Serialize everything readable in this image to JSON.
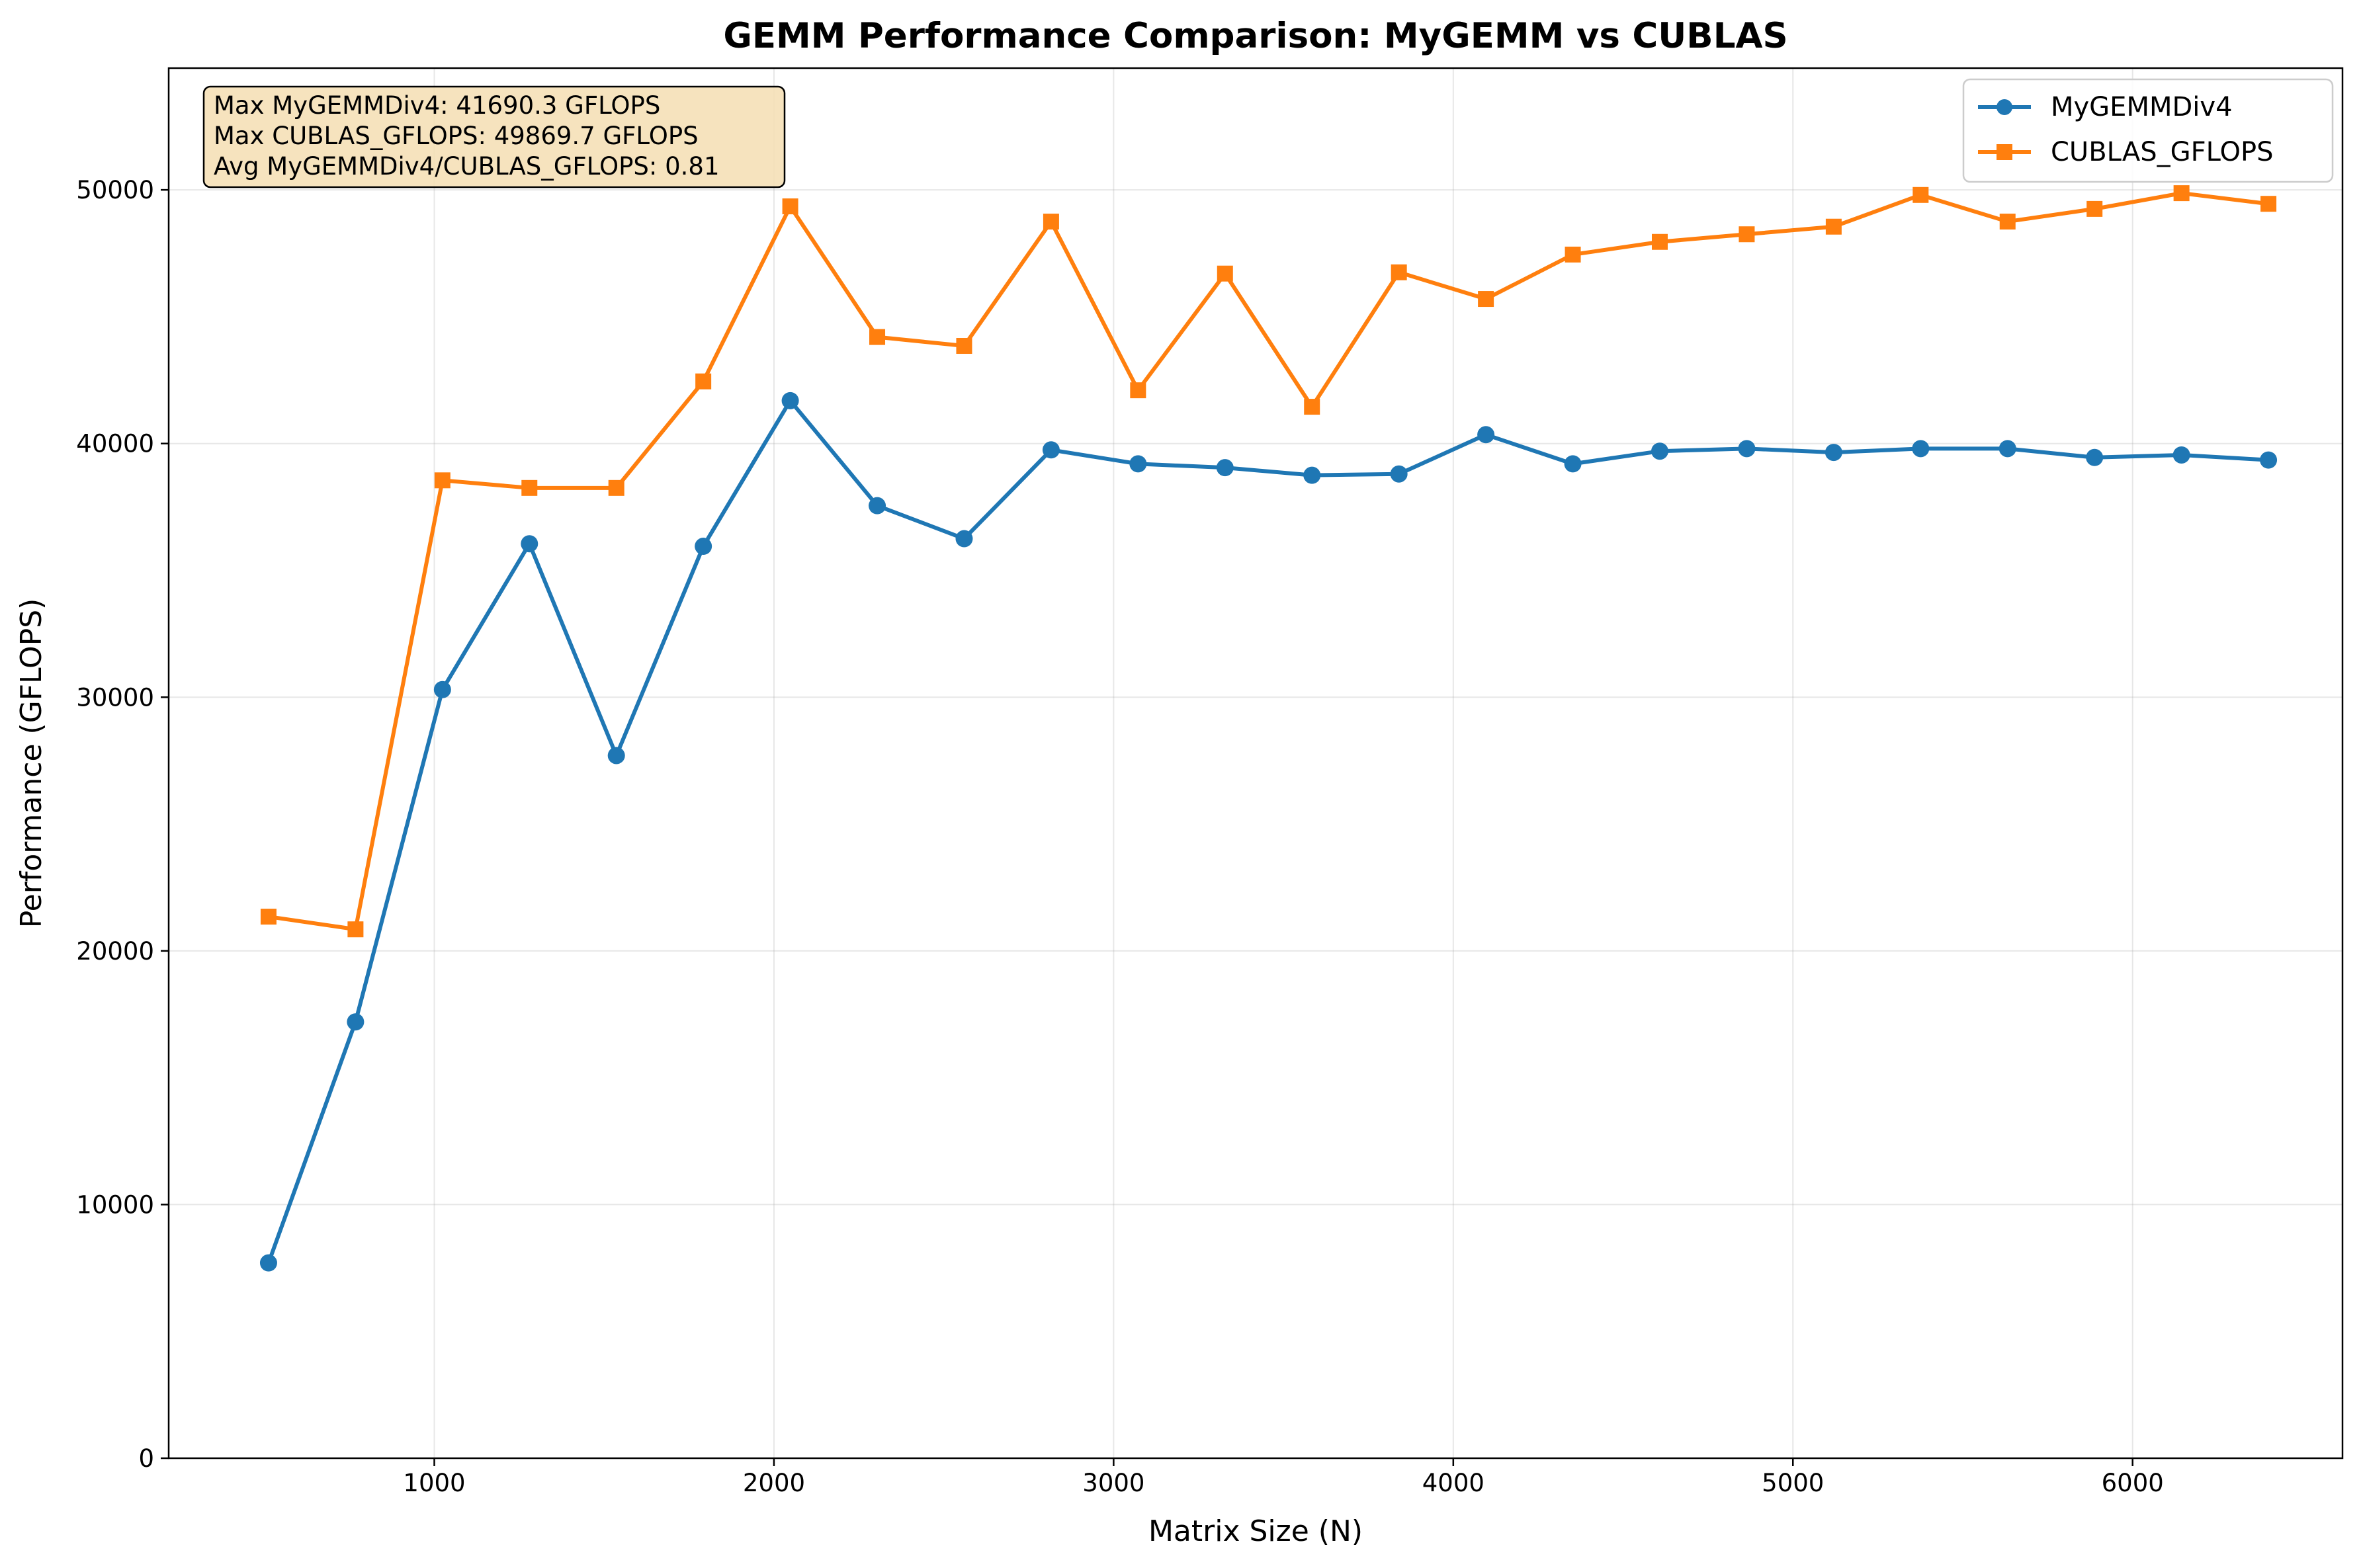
{
  "chart_data": {
    "type": "line",
    "title": "GEMM Performance Comparison: MyGEMM vs CUBLAS",
    "xlabel": "Matrix Size (N)",
    "ylabel": "Performance (GFLOPS)",
    "xlim": [
      218,
      6618
    ],
    "ylim": [
      0,
      54800
    ],
    "xticks": [
      1000,
      2000,
      3000,
      4000,
      5000,
      6000
    ],
    "yticks": [
      0,
      10000,
      20000,
      30000,
      40000,
      50000
    ],
    "grid": true,
    "legend_position": "upper right",
    "x": [
      512,
      768,
      1024,
      1280,
      1536,
      1792,
      2048,
      2304,
      2560,
      2816,
      3072,
      3328,
      3584,
      3840,
      4096,
      4352,
      4608,
      4864,
      5120,
      5376,
      5632,
      5888,
      6144,
      6400
    ],
    "series": [
      {
        "name": "MyGEMMDiv4",
        "color": "#1f77b4",
        "marker": "circle",
        "values": [
          7700,
          17200,
          30300,
          36050,
          27700,
          35950,
          41690.3,
          37550,
          36250,
          39750,
          39200,
          39050,
          38750,
          38800,
          40350,
          39200,
          39700,
          39800,
          39650,
          39800,
          39800,
          39450,
          39550,
          39350
        ]
      },
      {
        "name": "CUBLAS_GFLOPS",
        "color": "#ff7f0e",
        "marker": "square",
        "values": [
          21350,
          20850,
          38550,
          38250,
          38250,
          42450,
          49350,
          44200,
          43850,
          48750,
          42100,
          46700,
          41450,
          46750,
          45700,
          47450,
          47950,
          48250,
          48550,
          49800,
          48750,
          49250,
          49869.7,
          49450
        ]
      }
    ],
    "annotation": [
      "Max MyGEMMDiv4: 41690.3 GFLOPS",
      "Max CUBLAS_GFLOPS: 49869.7 GFLOPS",
      "Avg MyGEMMDiv4/CUBLAS_GFLOPS: 0.81"
    ],
    "annotation_box_color": "#f5deb3"
  }
}
